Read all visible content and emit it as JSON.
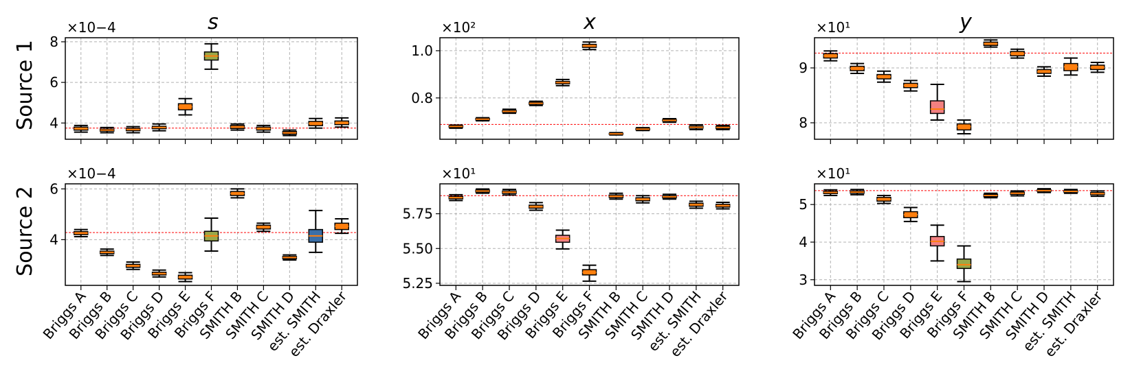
{
  "figure": {
    "column_titles": [
      "s",
      "x",
      "y"
    ],
    "row_labels": [
      "Source 1",
      "Source 2"
    ]
  },
  "colors": {
    "box_default": "#ff7f0e",
    "box_E": "#f28080",
    "box_F": "#9aa84a",
    "box_blue": "#3b6fa8",
    "median": "#ff7f0e",
    "reference": "#ff0000"
  },
  "chart_data": [
    {
      "type": "boxplot",
      "row": "Source 1",
      "column": "s",
      "multiplier": "×10−4",
      "ylim": [
        3.2,
        8.2
      ],
      "yticks": [
        4,
        6,
        8
      ],
      "yticklabels": [
        "4",
        "6",
        "8"
      ],
      "reference": 3.75,
      "categories": [
        "Briggs A",
        "Briggs B",
        "Briggs C",
        "Briggs D",
        "Briggs E",
        "Briggs F",
        "SMITH B",
        "SMITH C",
        "SMITH D",
        "est. SMITH",
        "est. Draxler"
      ],
      "boxes": [
        {
          "wl": 3.55,
          "q1": 3.65,
          "med": 3.72,
          "q3": 3.8,
          "wh": 3.88,
          "color": "default"
        },
        {
          "wl": 3.52,
          "q1": 3.6,
          "med": 3.65,
          "q3": 3.7,
          "wh": 3.78,
          "color": "default"
        },
        {
          "wl": 3.52,
          "q1": 3.62,
          "med": 3.68,
          "q3": 3.74,
          "wh": 3.82,
          "color": "default"
        },
        {
          "wl": 3.62,
          "q1": 3.72,
          "med": 3.78,
          "q3": 3.84,
          "wh": 3.95,
          "color": "default"
        },
        {
          "wl": 4.4,
          "q1": 4.65,
          "med": 4.8,
          "q3": 4.95,
          "wh": 5.2,
          "color": "default"
        },
        {
          "wl": 6.65,
          "q1": 7.1,
          "med": 7.3,
          "q3": 7.5,
          "wh": 7.9,
          "color": "F"
        },
        {
          "wl": 3.65,
          "q1": 3.73,
          "med": 3.8,
          "q3": 3.88,
          "wh": 3.95,
          "color": "default"
        },
        {
          "wl": 3.55,
          "q1": 3.65,
          "med": 3.72,
          "q3": 3.8,
          "wh": 3.88,
          "color": "default"
        },
        {
          "wl": 3.38,
          "q1": 3.45,
          "med": 3.52,
          "q3": 3.58,
          "wh": 3.65,
          "color": "default"
        },
        {
          "wl": 3.75,
          "q1": 3.87,
          "med": 3.98,
          "q3": 4.08,
          "wh": 4.22,
          "color": "default"
        },
        {
          "wl": 3.8,
          "q1": 3.92,
          "med": 4.0,
          "q3": 4.1,
          "wh": 4.25,
          "color": "default"
        }
      ]
    },
    {
      "type": "boxplot",
      "row": "Source 1",
      "column": "x",
      "multiplier": "×10²",
      "ylim": [
        0.625,
        1.055
      ],
      "yticks": [
        0.8,
        1.0
      ],
      "yticklabels": [
        "0.8",
        "1.0"
      ],
      "reference": 0.688,
      "categories": [
        "Briggs A",
        "Briggs B",
        "Briggs C",
        "Briggs D",
        "Briggs E",
        "Briggs F",
        "SMITH B",
        "SMITH C",
        "SMITH D",
        "est. SMITH",
        "est. Draxler"
      ],
      "boxes": [
        {
          "wl": 0.672,
          "q1": 0.676,
          "med": 0.679,
          "q3": 0.682,
          "wh": 0.685,
          "color": "default"
        },
        {
          "wl": 0.703,
          "q1": 0.707,
          "med": 0.71,
          "q3": 0.713,
          "wh": 0.716,
          "color": "default"
        },
        {
          "wl": 0.735,
          "q1": 0.74,
          "med": 0.743,
          "q3": 0.747,
          "wh": 0.752,
          "color": "default"
        },
        {
          "wl": 0.768,
          "q1": 0.773,
          "med": 0.777,
          "q3": 0.781,
          "wh": 0.786,
          "color": "default"
        },
        {
          "wl": 0.852,
          "q1": 0.86,
          "med": 0.865,
          "q3": 0.87,
          "wh": 0.878,
          "color": "default"
        },
        {
          "wl": 1.005,
          "q1": 1.014,
          "med": 1.02,
          "q3": 1.027,
          "wh": 1.037,
          "color": "default"
        },
        {
          "wl": 0.643,
          "q1": 0.646,
          "med": 0.648,
          "q3": 0.65,
          "wh": 0.653,
          "color": "default"
        },
        {
          "wl": 0.662,
          "q1": 0.665,
          "med": 0.668,
          "q3": 0.671,
          "wh": 0.674,
          "color": "default"
        },
        {
          "wl": 0.697,
          "q1": 0.702,
          "med": 0.705,
          "q3": 0.708,
          "wh": 0.712,
          "color": "default"
        },
        {
          "wl": 0.666,
          "q1": 0.672,
          "med": 0.676,
          "q3": 0.68,
          "wh": 0.686,
          "color": "default"
        },
        {
          "wl": 0.666,
          "q1": 0.671,
          "med": 0.675,
          "q3": 0.679,
          "wh": 0.684,
          "color": "default"
        }
      ]
    },
    {
      "type": "boxplot",
      "row": "Source 1",
      "column": "y",
      "multiplier": "×10¹",
      "ylim": [
        7.7,
        9.55
      ],
      "yticks": [
        8,
        9
      ],
      "yticklabels": [
        "8",
        "9"
      ],
      "reference": 9.27,
      "categories": [
        "Briggs A",
        "Briggs B",
        "Briggs C",
        "Briggs D",
        "Briggs E",
        "Briggs F",
        "SMITH B",
        "SMITH C",
        "SMITH D",
        "est. SMITH",
        "est. Draxler"
      ],
      "boxes": [
        {
          "wl": 9.13,
          "q1": 9.18,
          "med": 9.22,
          "q3": 9.26,
          "wh": 9.31,
          "color": "default"
        },
        {
          "wl": 8.9,
          "q1": 8.95,
          "med": 8.99,
          "q3": 9.03,
          "wh": 9.08,
          "color": "default"
        },
        {
          "wl": 8.74,
          "q1": 8.8,
          "med": 8.84,
          "q3": 8.88,
          "wh": 8.94,
          "color": "default"
        },
        {
          "wl": 8.58,
          "q1": 8.64,
          "med": 8.68,
          "q3": 8.72,
          "wh": 8.77,
          "color": "default"
        },
        {
          "wl": 8.05,
          "q1": 8.17,
          "med": 8.25,
          "q3": 8.4,
          "wh": 8.7,
          "color": "E"
        },
        {
          "wl": 7.8,
          "q1": 7.87,
          "med": 7.93,
          "q3": 7.98,
          "wh": 8.05,
          "color": "default"
        },
        {
          "wl": 9.38,
          "q1": 9.41,
          "med": 9.44,
          "q3": 9.47,
          "wh": 9.51,
          "color": "default"
        },
        {
          "wl": 9.18,
          "q1": 9.22,
          "med": 9.26,
          "q3": 9.3,
          "wh": 9.34,
          "color": "default"
        },
        {
          "wl": 8.85,
          "q1": 8.9,
          "med": 8.93,
          "q3": 8.97,
          "wh": 9.02,
          "color": "default"
        },
        {
          "wl": 8.87,
          "q1": 8.95,
          "med": 9.02,
          "q3": 9.08,
          "wh": 9.18,
          "color": "default"
        },
        {
          "wl": 8.92,
          "q1": 8.97,
          "med": 9.01,
          "q3": 9.05,
          "wh": 9.1,
          "color": "default"
        }
      ]
    },
    {
      "type": "boxplot",
      "row": "Source 2",
      "column": "s",
      "multiplier": "×10−4",
      "ylim": [
        2.2,
        6.2
      ],
      "yticks": [
        4,
        6
      ],
      "yticklabels": [
        "4",
        "6"
      ],
      "reference": 4.28,
      "categories": [
        "Briggs A",
        "Briggs B",
        "Briggs C",
        "Briggs D",
        "Briggs E",
        "Briggs F",
        "SMITH B",
        "SMITH C",
        "SMITH D",
        "est. SMITH",
        "est. Draxler"
      ],
      "boxes": [
        {
          "wl": 4.12,
          "q1": 4.2,
          "med": 4.26,
          "q3": 4.32,
          "wh": 4.4,
          "color": "default"
        },
        {
          "wl": 3.38,
          "q1": 3.45,
          "med": 3.5,
          "q3": 3.55,
          "wh": 3.63,
          "color": "default"
        },
        {
          "wl": 2.83,
          "q1": 2.91,
          "med": 2.97,
          "q3": 3.03,
          "wh": 3.12,
          "color": "default"
        },
        {
          "wl": 2.53,
          "q1": 2.61,
          "med": 2.66,
          "q3": 2.72,
          "wh": 2.8,
          "color": "default"
        },
        {
          "wl": 2.35,
          "q1": 2.45,
          "med": 2.52,
          "q3": 2.6,
          "wh": 2.7,
          "color": "default"
        },
        {
          "wl": 3.55,
          "q1": 3.95,
          "med": 4.15,
          "q3": 4.33,
          "wh": 4.85,
          "color": "F"
        },
        {
          "wl": 5.65,
          "q1": 5.74,
          "med": 5.82,
          "q3": 5.9,
          "wh": 6.0,
          "color": "default"
        },
        {
          "wl": 4.33,
          "q1": 4.42,
          "med": 4.5,
          "q3": 4.57,
          "wh": 4.65,
          "color": "default"
        },
        {
          "wl": 3.2,
          "q1": 3.25,
          "med": 3.3,
          "q3": 3.34,
          "wh": 3.4,
          "color": "default"
        },
        {
          "wl": 3.5,
          "q1": 3.9,
          "med": 4.15,
          "q3": 4.4,
          "wh": 5.15,
          "color": "blue"
        },
        {
          "wl": 4.25,
          "q1": 4.4,
          "med": 4.53,
          "q3": 4.65,
          "wh": 4.82,
          "color": "default"
        }
      ]
    },
    {
      "type": "boxplot",
      "row": "Source 2",
      "column": "x",
      "multiplier": "×10¹",
      "ylim": [
        5.235,
        5.965
      ],
      "yticks": [
        5.25,
        5.5,
        5.75
      ],
      "yticklabels": [
        "5.25",
        "5.50",
        "5.75"
      ],
      "reference": 5.88,
      "categories": [
        "Briggs A",
        "Briggs B",
        "Briggs C",
        "Briggs D",
        "Briggs E",
        "Briggs F",
        "SMITH B",
        "SMITH C",
        "SMITH D",
        "est. SMITH",
        "est. Draxler"
      ],
      "boxes": [
        {
          "wl": 5.845,
          "q1": 5.857,
          "med": 5.866,
          "q3": 5.875,
          "wh": 5.887,
          "color": "default"
        },
        {
          "wl": 5.898,
          "q1": 5.906,
          "med": 5.913,
          "q3": 5.92,
          "wh": 5.928,
          "color": "default"
        },
        {
          "wl": 5.885,
          "q1": 5.896,
          "med": 5.905,
          "q3": 5.914,
          "wh": 5.925,
          "color": "default"
        },
        {
          "wl": 5.775,
          "q1": 5.79,
          "med": 5.8,
          "q3": 5.812,
          "wh": 5.83,
          "color": "default"
        },
        {
          "wl": 5.497,
          "q1": 5.545,
          "med": 5.572,
          "q3": 5.595,
          "wh": 5.632,
          "color": "E"
        },
        {
          "wl": 5.265,
          "q1": 5.31,
          "med": 5.328,
          "q3": 5.348,
          "wh": 5.38,
          "color": "default"
        },
        {
          "wl": 5.855,
          "q1": 5.866,
          "med": 5.875,
          "q3": 5.885,
          "wh": 5.897,
          "color": "default"
        },
        {
          "wl": 5.828,
          "q1": 5.843,
          "med": 5.854,
          "q3": 5.865,
          "wh": 5.88,
          "color": "default"
        },
        {
          "wl": 5.855,
          "q1": 5.864,
          "med": 5.872,
          "q3": 5.88,
          "wh": 5.89,
          "color": "default"
        },
        {
          "wl": 5.79,
          "q1": 5.804,
          "med": 5.815,
          "q3": 5.826,
          "wh": 5.84,
          "color": "default"
        },
        {
          "wl": 5.785,
          "q1": 5.798,
          "med": 5.808,
          "q3": 5.818,
          "wh": 5.832,
          "color": "default"
        }
      ]
    },
    {
      "type": "boxplot",
      "row": "Source 2",
      "column": "y",
      "multiplier": "×10¹",
      "ylim": [
        2.85,
        5.55
      ],
      "yticks": [
        3,
        4,
        5
      ],
      "yticklabels": [
        "3",
        "4",
        "5"
      ],
      "reference": 5.37,
      "categories": [
        "Briggs A",
        "Briggs B",
        "Briggs C",
        "Briggs D",
        "Briggs E",
        "Briggs F",
        "SMITH B",
        "SMITH C",
        "SMITH D",
        "est. SMITH",
        "est. Draxler"
      ],
      "boxes": [
        {
          "wl": 5.24,
          "q1": 5.29,
          "med": 5.32,
          "q3": 5.35,
          "wh": 5.39,
          "color": "default"
        },
        {
          "wl": 5.26,
          "q1": 5.3,
          "med": 5.33,
          "q3": 5.36,
          "wh": 5.4,
          "color": "default"
        },
        {
          "wl": 5.03,
          "q1": 5.09,
          "med": 5.14,
          "q3": 5.19,
          "wh": 5.24,
          "color": "default"
        },
        {
          "wl": 4.55,
          "q1": 4.65,
          "med": 4.73,
          "q3": 4.81,
          "wh": 4.92,
          "color": "default"
        },
        {
          "wl": 3.5,
          "q1": 3.9,
          "med": 4.02,
          "q3": 4.15,
          "wh": 4.45,
          "color": "E"
        },
        {
          "wl": 2.95,
          "q1": 3.3,
          "med": 3.4,
          "q3": 3.55,
          "wh": 3.9,
          "color": "F"
        },
        {
          "wl": 5.18,
          "q1": 5.21,
          "med": 5.24,
          "q3": 5.27,
          "wh": 5.3,
          "color": "default"
        },
        {
          "wl": 5.23,
          "q1": 5.27,
          "med": 5.3,
          "q3": 5.33,
          "wh": 5.36,
          "color": "default"
        },
        {
          "wl": 5.32,
          "q1": 5.35,
          "med": 5.37,
          "q3": 5.39,
          "wh": 5.42,
          "color": "default"
        },
        {
          "wl": 5.3,
          "q1": 5.33,
          "med": 5.35,
          "q3": 5.37,
          "wh": 5.4,
          "color": "default"
        },
        {
          "wl": 5.22,
          "q1": 5.26,
          "med": 5.29,
          "q3": 5.32,
          "wh": 5.36,
          "color": "default"
        }
      ]
    }
  ]
}
